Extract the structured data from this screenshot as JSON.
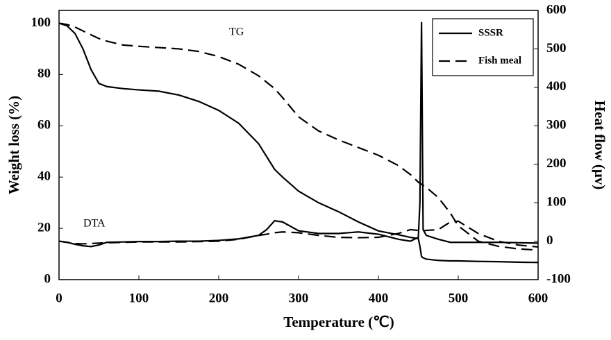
{
  "chart_data": {
    "type": "line",
    "xlabel": "Temperature (℃)",
    "ylabel": "Weight loss (%)",
    "y2label": "Heat flow (μv)",
    "annotations": [
      "TG",
      "DTA"
    ],
    "x": [
      0,
      10,
      20,
      30,
      40,
      50,
      60,
      80,
      100,
      125,
      150,
      175,
      200,
      225,
      250,
      260,
      270,
      280,
      300,
      325,
      350,
      375,
      400,
      425,
      440,
      450,
      452,
      454,
      456,
      460,
      475,
      490,
      500,
      525,
      550,
      575,
      600
    ],
    "series": [
      {
        "name": "SSSR",
        "color": "#000000",
        "dash": "solid",
        "values": [
          100,
          99,
          96,
          90,
          82,
          76.5,
          75.3,
          74.5,
          74,
          73.5,
          72,
          69.5,
          66,
          61,
          53,
          48,
          43,
          40,
          34.5,
          30,
          26.5,
          22.5,
          19,
          17.5,
          16.5,
          16,
          13,
          9,
          8.5,
          8,
          7.5,
          7.3,
          7.3,
          7.1,
          7,
          6.8,
          6.7
        ],
        "dta_values": [
          0,
          -3,
          -8,
          -12,
          -14,
          -10,
          -3,
          -2,
          -1,
          -1,
          0,
          0,
          2,
          6,
          15,
          30,
          53,
          50,
          27,
          20,
          20,
          24,
          18,
          5,
          0,
          10,
          100,
          570,
          30,
          15,
          5,
          -3,
          -3,
          -3,
          -3,
          -4,
          -5
        ]
      },
      {
        "name": "Fish meal",
        "color": "#000000",
        "dash": "dashed",
        "values": [
          100,
          99.5,
          98.5,
          97,
          95.5,
          94,
          93,
          91.5,
          91,
          90.5,
          90,
          89,
          87,
          84,
          79.5,
          77,
          74.5,
          71,
          63.5,
          58,
          54.5,
          51.5,
          48.5,
          44.5,
          41,
          38,
          37.6,
          37.2,
          36.8,
          36,
          32,
          26,
          21,
          15,
          13,
          12,
          11.5
        ],
        "dta_values": [
          0,
          -3,
          -6,
          -7,
          -6,
          -5,
          -4,
          -3,
          -2,
          -2,
          -2,
          -1,
          0,
          5,
          15,
          18,
          22,
          24,
          22,
          15,
          10,
          9,
          10,
          20,
          30,
          28,
          27,
          27,
          27,
          28,
          30,
          50,
          52,
          20,
          0,
          -10,
          -15
        ]
      }
    ],
    "xlim": [
      0,
      600
    ],
    "xticks": [
      0,
      100,
      200,
      300,
      400,
      500,
      600
    ],
    "ylim": [
      0,
      105
    ],
    "yticks": [
      0,
      20,
      40,
      60,
      80,
      100
    ],
    "y2lim": [
      -100,
      600
    ],
    "y2ticks": [
      -100,
      0,
      100,
      200,
      300,
      400,
      500,
      600
    ],
    "legend": "upper right"
  }
}
